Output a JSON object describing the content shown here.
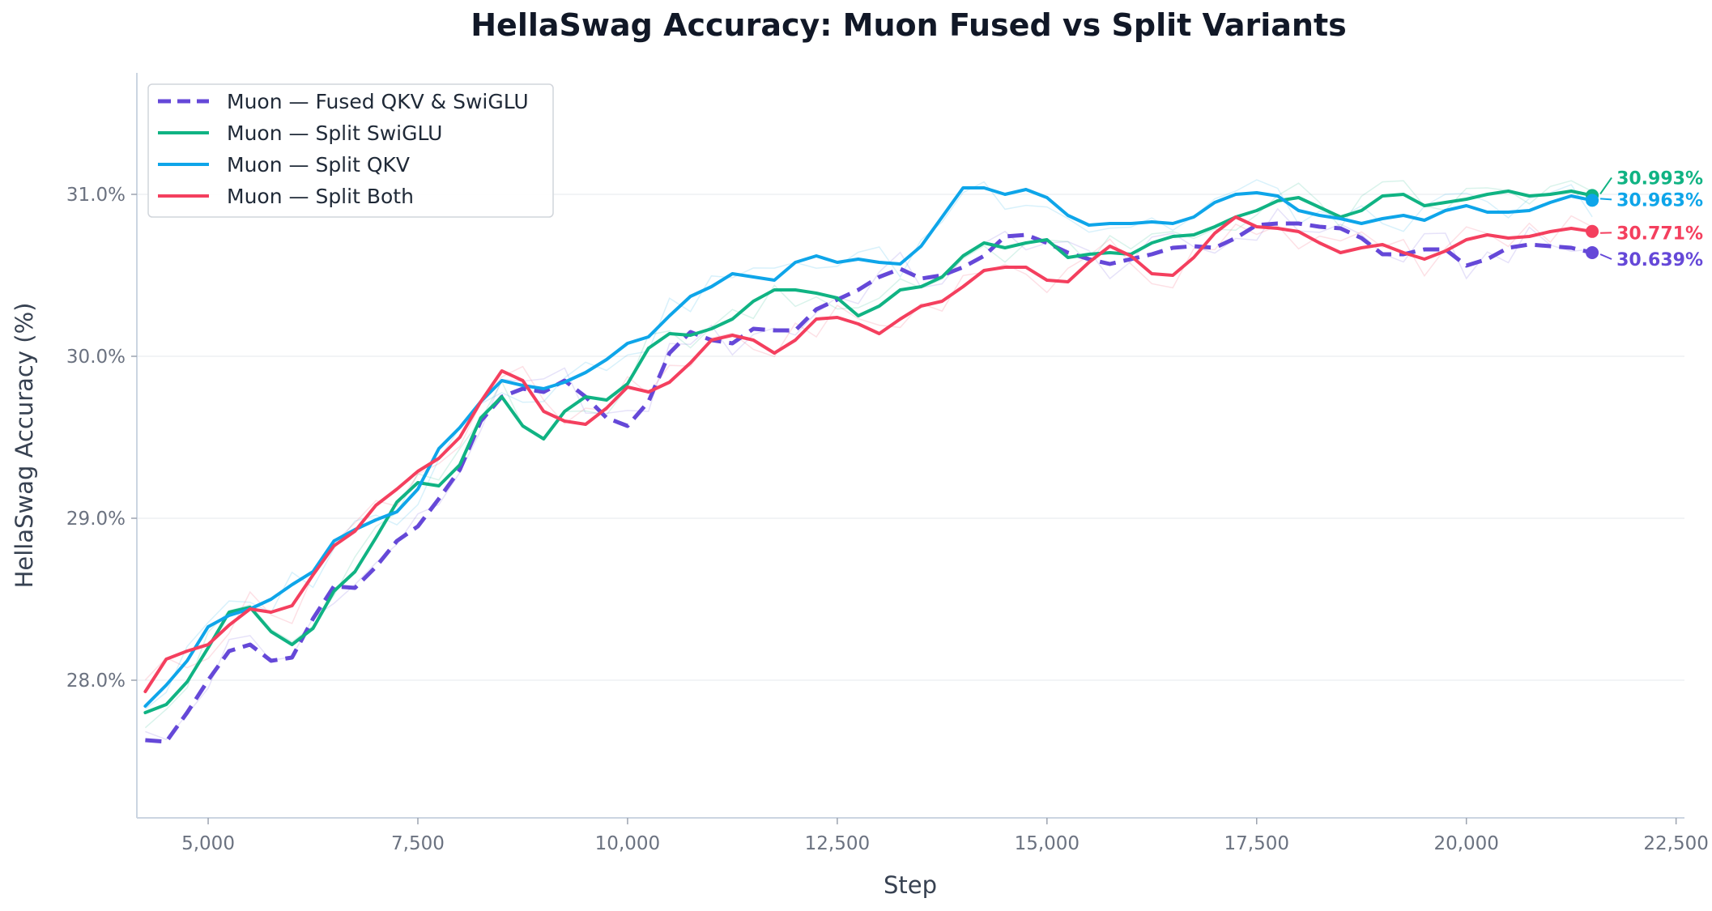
{
  "chart_data": {
    "type": "line",
    "title": "HellaSwag Accuracy: Muon Fused vs Split Variants",
    "xlabel": "Step",
    "ylabel": "HellaSwag Accuracy (%)",
    "xlim": [
      4150,
      22600
    ],
    "ylim": [
      27.15,
      31.75
    ],
    "x_ticks": [
      5000,
      7500,
      10000,
      12500,
      15000,
      17500,
      20000,
      22500
    ],
    "x_tick_labels": [
      "5,000",
      "7,500",
      "10,000",
      "12,500",
      "15,000",
      "17,500",
      "20,000",
      "22,500"
    ],
    "y_ticks": [
      28.0,
      29.0,
      30.0,
      31.0
    ],
    "y_tick_labels": [
      "28.0%",
      "29.0%",
      "30.0%",
      "31.0%"
    ],
    "grid": "horizontal",
    "legend_position": "top-left",
    "series": [
      {
        "name": "Muon — Fused QKV & SwiGLU",
        "color": "#6548d8",
        "dash": "dashed",
        "end_label": "30.639%",
        "x": [
          4250,
          4500,
          4750,
          5000,
          5250,
          5500,
          5750,
          6000,
          6250,
          6500,
          6750,
          7000,
          7250,
          7500,
          7750,
          8000,
          8250,
          8500,
          8750,
          9000,
          9250,
          9500,
          9750,
          10000,
          10250,
          10500,
          10750,
          11000,
          11250,
          11500,
          11750,
          12000,
          12250,
          12500,
          12750,
          13000,
          13250,
          13500,
          13750,
          14000,
          14250,
          14500,
          14750,
          15000,
          15250,
          15500,
          15750,
          16000,
          16250,
          16500,
          16750,
          17000,
          17250,
          17500,
          17750,
          18000,
          18250,
          18500,
          18750,
          19000,
          19250,
          19500,
          19750,
          20000,
          20250,
          20500,
          20750,
          21000,
          21250,
          21500
        ],
        "values": [
          27.63,
          27.62,
          27.8,
          28.0,
          28.18,
          28.22,
          28.12,
          28.14,
          28.38,
          28.58,
          28.57,
          28.7,
          28.86,
          28.95,
          29.12,
          29.3,
          29.6,
          29.75,
          29.8,
          29.78,
          29.85,
          29.75,
          29.62,
          29.57,
          29.72,
          30.02,
          30.15,
          30.1,
          30.08,
          30.17,
          30.16,
          30.16,
          30.29,
          30.35,
          30.41,
          30.49,
          30.54,
          30.48,
          30.5,
          30.55,
          30.62,
          30.74,
          30.75,
          30.7,
          30.64,
          30.6,
          30.57,
          30.6,
          30.63,
          30.67,
          30.68,
          30.67,
          30.73,
          30.81,
          30.82,
          30.82,
          30.8,
          30.79,
          30.73,
          30.63,
          30.63,
          30.66,
          30.66,
          30.56,
          30.6,
          30.67,
          30.69,
          30.68,
          30.67,
          30.64
        ]
      },
      {
        "name": "Muon — Split SwiGLU",
        "color": "#10b383",
        "dash": "solid",
        "end_label": "30.993%",
        "x": [
          4250,
          4500,
          4750,
          5000,
          5250,
          5500,
          5750,
          6000,
          6250,
          6500,
          6750,
          7000,
          7250,
          7500,
          7750,
          8000,
          8250,
          8500,
          8750,
          9000,
          9250,
          9500,
          9750,
          10000,
          10250,
          10500,
          10750,
          11000,
          11250,
          11500,
          11750,
          12000,
          12250,
          12500,
          12750,
          13000,
          13250,
          13500,
          13750,
          14000,
          14250,
          14500,
          14750,
          15000,
          15250,
          15500,
          15750,
          16000,
          16250,
          16500,
          16750,
          17000,
          17250,
          17500,
          17750,
          18000,
          18250,
          18500,
          18750,
          19000,
          19250,
          19500,
          19750,
          20000,
          20250,
          20500,
          20750,
          21000,
          21250,
          21500
        ],
        "values": [
          27.8,
          27.85,
          27.99,
          28.2,
          28.42,
          28.45,
          28.3,
          28.22,
          28.32,
          28.55,
          28.67,
          28.88,
          29.1,
          29.22,
          29.2,
          29.33,
          29.62,
          29.75,
          29.57,
          29.49,
          29.66,
          29.75,
          29.73,
          29.83,
          30.05,
          30.14,
          30.13,
          30.17,
          30.23,
          30.34,
          30.41,
          30.41,
          30.39,
          30.36,
          30.25,
          30.31,
          30.41,
          30.43,
          30.49,
          30.62,
          30.7,
          30.67,
          30.7,
          30.72,
          30.61,
          30.63,
          30.64,
          30.63,
          30.7,
          30.74,
          30.75,
          30.8,
          30.86,
          30.9,
          30.96,
          30.98,
          30.92,
          30.86,
          30.9,
          30.99,
          31.0,
          30.93,
          30.95,
          30.97,
          31.0,
          31.02,
          30.99,
          31.0,
          31.02,
          30.993
        ]
      },
      {
        "name": "Muon — Split QKV",
        "color": "#0ea5e9",
        "dash": "solid",
        "end_label": "30.963%",
        "x": [
          4250,
          4500,
          4750,
          5000,
          5250,
          5500,
          5750,
          6000,
          6250,
          6500,
          6750,
          7000,
          7250,
          7500,
          7750,
          8000,
          8250,
          8500,
          8750,
          9000,
          9250,
          9500,
          9750,
          10000,
          10250,
          10500,
          10750,
          11000,
          11250,
          11500,
          11750,
          12000,
          12250,
          12500,
          12750,
          13000,
          13250,
          13500,
          13750,
          14000,
          14250,
          14500,
          14750,
          15000,
          15250,
          15500,
          15750,
          16000,
          16250,
          16500,
          16750,
          17000,
          17250,
          17500,
          17750,
          18000,
          18250,
          18500,
          18750,
          19000,
          19250,
          19500,
          19750,
          20000,
          20250,
          20500,
          20750,
          21000,
          21250,
          21500
        ],
        "values": [
          27.84,
          27.97,
          28.12,
          28.33,
          28.4,
          28.44,
          28.5,
          28.59,
          28.67,
          28.86,
          28.93,
          28.99,
          29.04,
          29.18,
          29.43,
          29.56,
          29.72,
          29.85,
          29.82,
          29.8,
          29.84,
          29.9,
          29.98,
          30.08,
          30.12,
          30.25,
          30.37,
          30.43,
          30.51,
          30.49,
          30.47,
          30.58,
          30.62,
          30.58,
          30.6,
          30.58,
          30.57,
          30.68,
          30.86,
          31.04,
          31.04,
          31.0,
          31.03,
          30.98,
          30.87,
          30.81,
          30.82,
          30.82,
          30.83,
          30.82,
          30.86,
          30.95,
          31.0,
          31.01,
          30.99,
          30.9,
          30.87,
          30.85,
          30.82,
          30.85,
          30.87,
          30.84,
          30.9,
          30.93,
          30.89,
          30.89,
          30.9,
          30.95,
          30.99,
          30.963
        ]
      },
      {
        "name": "Muon — Split Both",
        "color": "#f43f5e",
        "dash": "solid",
        "end_label": "30.771%",
        "x": [
          4250,
          4500,
          4750,
          5000,
          5250,
          5500,
          5750,
          6000,
          6250,
          6500,
          6750,
          7000,
          7250,
          7500,
          7750,
          8000,
          8250,
          8500,
          8750,
          9000,
          9250,
          9500,
          9750,
          10000,
          10250,
          10500,
          10750,
          11000,
          11250,
          11500,
          11750,
          12000,
          12250,
          12500,
          12750,
          13000,
          13250,
          13500,
          13750,
          14000,
          14250,
          14500,
          14750,
          15000,
          15250,
          15500,
          15750,
          16000,
          16250,
          16500,
          16750,
          17000,
          17250,
          17500,
          17750,
          18000,
          18250,
          18500,
          18750,
          19000,
          19250,
          19500,
          19750,
          20000,
          20250,
          20500,
          20750,
          21000,
          21250,
          21500
        ],
        "values": [
          27.93,
          28.13,
          28.18,
          28.22,
          28.34,
          28.44,
          28.42,
          28.46,
          28.65,
          28.83,
          28.92,
          29.08,
          29.18,
          29.29,
          29.37,
          29.5,
          29.72,
          29.91,
          29.85,
          29.66,
          29.6,
          29.58,
          29.68,
          29.81,
          29.78,
          29.84,
          29.96,
          30.1,
          30.13,
          30.1,
          30.02,
          30.1,
          30.23,
          30.24,
          30.2,
          30.14,
          30.23,
          30.31,
          30.34,
          30.43,
          30.53,
          30.55,
          30.55,
          30.47,
          30.46,
          30.58,
          30.68,
          30.62,
          30.51,
          30.5,
          30.61,
          30.76,
          30.86,
          30.8,
          30.79,
          30.77,
          30.7,
          30.64,
          30.67,
          30.69,
          30.64,
          30.6,
          30.65,
          30.72,
          30.75,
          30.73,
          30.74,
          30.77,
          30.79,
          30.771
        ]
      }
    ]
  }
}
